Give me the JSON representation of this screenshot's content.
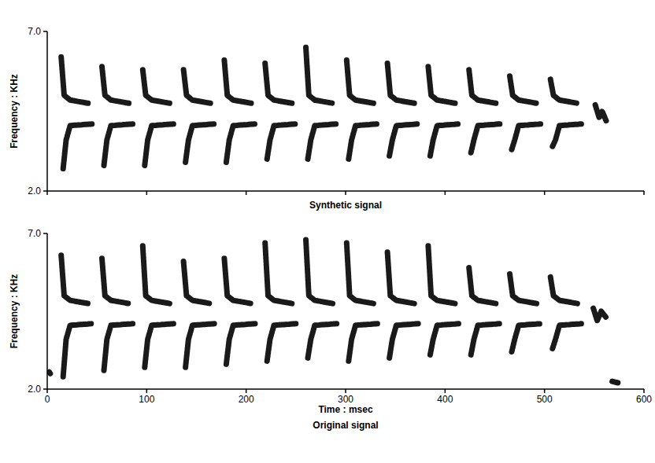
{
  "chart_data": [
    {
      "type": "spectrogram",
      "title": "Synthetic signal",
      "ylabel": "Frequency : KHz",
      "xlim": [
        0,
        600
      ],
      "ylim": [
        2,
        7
      ],
      "xticks": [
        0,
        100,
        200,
        300,
        400,
        500,
        600
      ],
      "yticks": [
        {
          "value": 2,
          "label": "2.0"
        },
        {
          "value": 7,
          "label": "7.0"
        }
      ],
      "tick_labels": "y",
      "color": "#1a1a1a",
      "traces": [
        {
          "x": [
            14,
            17,
            23,
            41
          ],
          "y": [
            6.2,
            5.0,
            4.85,
            4.75
          ]
        },
        {
          "x": [
            16,
            19,
            23,
            45
          ],
          "y": [
            2.7,
            3.6,
            4.05,
            4.1
          ]
        },
        {
          "x": [
            55,
            58,
            64,
            82
          ],
          "y": [
            5.9,
            5.0,
            4.85,
            4.75
          ]
        },
        {
          "x": [
            57,
            60,
            64,
            86
          ],
          "y": [
            2.8,
            3.6,
            4.05,
            4.1
          ]
        },
        {
          "x": [
            96,
            99,
            105,
            123
          ],
          "y": [
            5.8,
            5.0,
            4.85,
            4.75
          ]
        },
        {
          "x": [
            98,
            101,
            105,
            127
          ],
          "y": [
            2.8,
            3.6,
            4.05,
            4.1
          ]
        },
        {
          "x": [
            137,
            140,
            146,
            164
          ],
          "y": [
            5.8,
            5.0,
            4.85,
            4.75
          ]
        },
        {
          "x": [
            139,
            142,
            146,
            168
          ],
          "y": [
            2.9,
            3.6,
            4.05,
            4.1
          ]
        },
        {
          "x": [
            178,
            181,
            187,
            205
          ],
          "y": [
            6.1,
            5.0,
            4.85,
            4.75
          ]
        },
        {
          "x": [
            180,
            183,
            187,
            209
          ],
          "y": [
            2.9,
            3.6,
            4.05,
            4.1
          ]
        },
        {
          "x": [
            219,
            222,
            228,
            246
          ],
          "y": [
            6.0,
            5.0,
            4.85,
            4.75
          ]
        },
        {
          "x": [
            221,
            224,
            228,
            250
          ],
          "y": [
            3.0,
            3.6,
            4.05,
            4.1
          ]
        },
        {
          "x": [
            260,
            263,
            269,
            287
          ],
          "y": [
            6.5,
            5.0,
            4.85,
            4.75
          ]
        },
        {
          "x": [
            262,
            265,
            269,
            291
          ],
          "y": [
            3.0,
            3.6,
            4.05,
            4.1
          ]
        },
        {
          "x": [
            301,
            304,
            310,
            328
          ],
          "y": [
            6.1,
            5.0,
            4.85,
            4.75
          ]
        },
        {
          "x": [
            303,
            306,
            310,
            332
          ],
          "y": [
            3.0,
            3.6,
            4.05,
            4.1
          ]
        },
        {
          "x": [
            342,
            345,
            351,
            369
          ],
          "y": [
            6.0,
            5.0,
            4.85,
            4.75
          ]
        },
        {
          "x": [
            344,
            347,
            351,
            373
          ],
          "y": [
            3.1,
            3.6,
            4.05,
            4.1
          ]
        },
        {
          "x": [
            383,
            386,
            392,
            410
          ],
          "y": [
            5.9,
            5.0,
            4.85,
            4.75
          ]
        },
        {
          "x": [
            385,
            388,
            392,
            414
          ],
          "y": [
            3.1,
            3.6,
            4.05,
            4.1
          ]
        },
        {
          "x": [
            424,
            427,
            433,
            451
          ],
          "y": [
            5.8,
            5.0,
            4.85,
            4.75
          ]
        },
        {
          "x": [
            426,
            429,
            433,
            455
          ],
          "y": [
            3.2,
            3.6,
            4.05,
            4.1
          ]
        },
        {
          "x": [
            465,
            468,
            474,
            492
          ],
          "y": [
            5.6,
            5.0,
            4.85,
            4.75
          ]
        },
        {
          "x": [
            467,
            470,
            474,
            496
          ],
          "y": [
            3.3,
            3.6,
            4.05,
            4.1
          ]
        },
        {
          "x": [
            506,
            509,
            515,
            533
          ],
          "y": [
            5.5,
            5.0,
            4.85,
            4.75
          ]
        },
        {
          "x": [
            508,
            511,
            515,
            537
          ],
          "y": [
            3.4,
            3.6,
            4.05,
            4.1
          ]
        },
        {
          "x": [
            551,
            555,
            558,
            562
          ],
          "y": [
            4.7,
            4.3,
            4.5,
            4.2
          ]
        }
      ]
    },
    {
      "type": "spectrogram",
      "title": "Original signal",
      "ylabel": "Frequency : KHz",
      "xlabel": "Time : msec",
      "xlim": [
        0,
        600
      ],
      "ylim": [
        2,
        7
      ],
      "xticks": [
        0,
        100,
        200,
        300,
        400,
        500,
        600
      ],
      "yticks": [
        {
          "value": 2,
          "label": "2.0"
        },
        {
          "value": 7,
          "label": "7.0"
        }
      ],
      "color": "#1a1a1a",
      "traces": [
        {
          "x": [
            14,
            17,
            23,
            41
          ],
          "y": [
            6.3,
            5.0,
            4.85,
            4.75
          ]
        },
        {
          "x": [
            16,
            19,
            23,
            45
          ],
          "y": [
            2.4,
            3.6,
            4.05,
            4.1
          ]
        },
        {
          "x": [
            55,
            58,
            64,
            82
          ],
          "y": [
            6.2,
            5.0,
            4.85,
            4.75
          ]
        },
        {
          "x": [
            57,
            60,
            64,
            86
          ],
          "y": [
            2.6,
            3.6,
            4.05,
            4.1
          ]
        },
        {
          "x": [
            96,
            99,
            105,
            123
          ],
          "y": [
            6.6,
            5.0,
            4.85,
            4.75
          ]
        },
        {
          "x": [
            98,
            101,
            105,
            127
          ],
          "y": [
            2.7,
            3.6,
            4.05,
            4.1
          ]
        },
        {
          "x": [
            137,
            140,
            146,
            164
          ],
          "y": [
            6.1,
            5.0,
            4.85,
            4.75
          ]
        },
        {
          "x": [
            139,
            142,
            146,
            168
          ],
          "y": [
            2.7,
            3.6,
            4.05,
            4.1
          ]
        },
        {
          "x": [
            178,
            181,
            187,
            205
          ],
          "y": [
            6.2,
            5.0,
            4.85,
            4.75
          ]
        },
        {
          "x": [
            180,
            183,
            187,
            209
          ],
          "y": [
            2.8,
            3.6,
            4.05,
            4.1
          ]
        },
        {
          "x": [
            219,
            222,
            228,
            246
          ],
          "y": [
            6.7,
            5.0,
            4.85,
            4.75
          ]
        },
        {
          "x": [
            221,
            224,
            228,
            250
          ],
          "y": [
            2.9,
            3.6,
            4.05,
            4.1
          ]
        },
        {
          "x": [
            260,
            263,
            269,
            287
          ],
          "y": [
            6.8,
            5.0,
            4.85,
            4.75
          ]
        },
        {
          "x": [
            262,
            265,
            269,
            291
          ],
          "y": [
            3.0,
            3.6,
            4.05,
            4.1
          ]
        },
        {
          "x": [
            301,
            304,
            310,
            328
          ],
          "y": [
            6.7,
            5.0,
            4.85,
            4.75
          ]
        },
        {
          "x": [
            303,
            306,
            310,
            332
          ],
          "y": [
            2.9,
            3.6,
            4.05,
            4.1
          ]
        },
        {
          "x": [
            342,
            345,
            351,
            369
          ],
          "y": [
            6.4,
            5.0,
            4.85,
            4.75
          ]
        },
        {
          "x": [
            344,
            347,
            351,
            373
          ],
          "y": [
            3.0,
            3.6,
            4.05,
            4.1
          ]
        },
        {
          "x": [
            383,
            386,
            392,
            410
          ],
          "y": [
            6.6,
            5.0,
            4.85,
            4.75
          ]
        },
        {
          "x": [
            385,
            388,
            392,
            414
          ],
          "y": [
            3.1,
            3.6,
            4.05,
            4.1
          ]
        },
        {
          "x": [
            424,
            427,
            433,
            451
          ],
          "y": [
            5.9,
            5.0,
            4.85,
            4.75
          ]
        },
        {
          "x": [
            426,
            429,
            433,
            455
          ],
          "y": [
            3.1,
            3.6,
            4.05,
            4.1
          ]
        },
        {
          "x": [
            465,
            468,
            474,
            492
          ],
          "y": [
            5.7,
            5.0,
            4.85,
            4.75
          ]
        },
        {
          "x": [
            467,
            470,
            474,
            496
          ],
          "y": [
            3.2,
            3.6,
            4.05,
            4.1
          ]
        },
        {
          "x": [
            506,
            509,
            515,
            533
          ],
          "y": [
            5.6,
            5.0,
            4.85,
            4.75
          ]
        },
        {
          "x": [
            508,
            511,
            515,
            537
          ],
          "y": [
            3.3,
            3.6,
            4.05,
            4.1
          ]
        },
        {
          "x": [
            549,
            553,
            557,
            562
          ],
          "y": [
            4.6,
            4.2,
            4.5,
            4.3
          ]
        },
        {
          "x": [
            568,
            574
          ],
          "y": [
            2.25,
            2.2
          ]
        },
        {
          "x": [
            2,
            3
          ],
          "y": [
            2.55,
            2.5
          ]
        }
      ]
    }
  ]
}
